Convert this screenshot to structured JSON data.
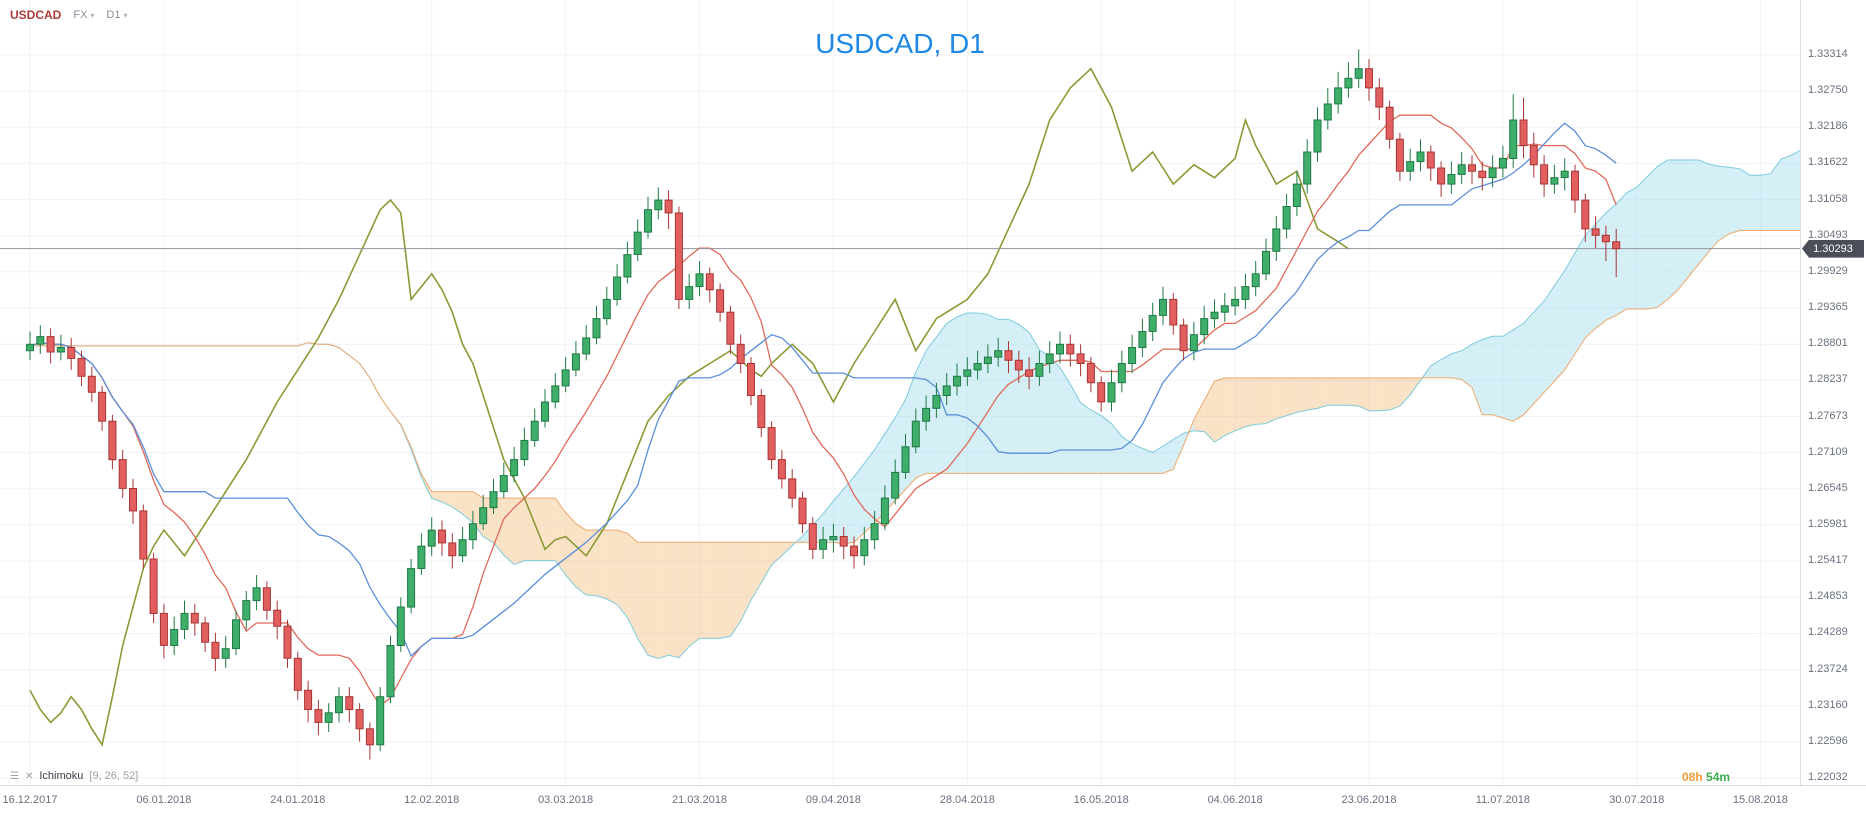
{
  "header": {
    "symbol": "USDCAD",
    "market": "FX",
    "timeframe": "D1"
  },
  "title": "USDCAD, D1",
  "legend": {
    "indicator": "Ichimoku",
    "params": "[9, 26, 52]"
  },
  "countdown": {
    "hours": "08h",
    "minutes": "54m"
  },
  "price_axis": {
    "labels": [
      "1.33314",
      "1.32750",
      "1.32186",
      "1.31622",
      "1.31058",
      "1.30493",
      "1.29929",
      "1.29365",
      "1.28801",
      "1.28237",
      "1.27673",
      "1.27109",
      "1.26545",
      "1.25981",
      "1.25417",
      "1.24853",
      "1.24289",
      "1.23724",
      "1.23160",
      "1.22596",
      "1.22032"
    ],
    "last_price": "1.30293"
  },
  "time_axis": {
    "labels": [
      "16.12.2017",
      "06.01.2018",
      "24.01.2018",
      "12.02.2018",
      "03.03.2018",
      "21.03.2018",
      "09.04.2018",
      "28.04.2018",
      "16.05.2018",
      "04.06.2018",
      "23.06.2018",
      "11.07.2018",
      "30.07.2018",
      "15.08.2018"
    ]
  },
  "colors": {
    "up": "#3fae6a",
    "up_border": "#1f7a45",
    "down": "#e25f5f",
    "down_border": "#a83434",
    "tenkan": "#e06a5a",
    "kijun": "#5b8fd9",
    "chikou": "#8a9a35",
    "senkou_a": "#7ecbdc",
    "senkou_b": "#f0a96b",
    "cloud_bull": "rgba(160,220,236,0.45)",
    "cloud_bear": "rgba(245,190,130,0.45)",
    "grid": "#f0f2f7",
    "price_line": "#8f949d",
    "badge_bg": "#4a4e59",
    "title": "#1e88e5",
    "symbol": "#b03a3a",
    "countdown_hours": "#f29b38",
    "countdown_minutes": "#3cab4e",
    "axis_text": "#6a7080"
  },
  "chart_data": {
    "type": "candlestick",
    "symbol": "USDCAD",
    "interval": "D1",
    "title": "USDCAD, D1",
    "indicator": {
      "name": "Ichimoku",
      "params": [
        9,
        26,
        52
      ]
    },
    "ylim": [
      1.22032,
      1.33314
    ],
    "last_close": 1.30293,
    "x_tick_indices": [
      0,
      13,
      26,
      39,
      52,
      65,
      78,
      91,
      104,
      117,
      130,
      143,
      156,
      168
    ],
    "x_tick_labels": [
      "16.12.2017",
      "06.01.2018",
      "24.01.2018",
      "12.02.2018",
      "03.03.2018",
      "21.03.2018",
      "09.04.2018",
      "28.04.2018",
      "16.05.2018",
      "04.06.2018",
      "23.06.2018",
      "11.07.2018",
      "30.07.2018",
      "15.08.2018"
    ],
    "ohlc": [
      [
        1.287,
        1.29,
        1.2855,
        1.288
      ],
      [
        1.288,
        1.291,
        1.2865,
        1.2892
      ],
      [
        1.2892,
        1.2905,
        1.285,
        1.2868
      ],
      [
        1.2868,
        1.2895,
        1.2855,
        1.2875
      ],
      [
        1.2875,
        1.289,
        1.284,
        1.2858
      ],
      [
        1.2858,
        1.287,
        1.2815,
        1.283
      ],
      [
        1.283,
        1.2845,
        1.279,
        1.2805
      ],
      [
        1.2805,
        1.2815,
        1.2745,
        1.276
      ],
      [
        1.276,
        1.277,
        1.2685,
        1.27
      ],
      [
        1.27,
        1.2715,
        1.264,
        1.2655
      ],
      [
        1.2655,
        1.267,
        1.26,
        1.262
      ],
      [
        1.262,
        1.263,
        1.253,
        1.2545
      ],
      [
        1.2545,
        1.2555,
        1.2445,
        1.246
      ],
      [
        1.246,
        1.2475,
        1.239,
        1.241
      ],
      [
        1.241,
        1.2455,
        1.2395,
        1.2435
      ],
      [
        1.2435,
        1.248,
        1.242,
        1.246
      ],
      [
        1.246,
        1.2475,
        1.2425,
        1.2445
      ],
      [
        1.2445,
        1.2455,
        1.24,
        1.2415
      ],
      [
        1.2415,
        1.243,
        1.237,
        1.239
      ],
      [
        1.239,
        1.2425,
        1.2375,
        1.2405
      ],
      [
        1.2405,
        1.2465,
        1.2395,
        1.245
      ],
      [
        1.245,
        1.2495,
        1.2435,
        1.248
      ],
      [
        1.248,
        1.252,
        1.2465,
        1.25
      ],
      [
        1.25,
        1.251,
        1.245,
        1.2465
      ],
      [
        1.2465,
        1.248,
        1.242,
        1.244
      ],
      [
        1.244,
        1.245,
        1.2375,
        1.239
      ],
      [
        1.239,
        1.24,
        1.2325,
        1.234
      ],
      [
        1.234,
        1.2355,
        1.229,
        1.231
      ],
      [
        1.231,
        1.2325,
        1.227,
        1.229
      ],
      [
        1.229,
        1.232,
        1.2275,
        1.2305
      ],
      [
        1.2305,
        1.2345,
        1.229,
        1.233
      ],
      [
        1.233,
        1.2345,
        1.229,
        1.231
      ],
      [
        1.231,
        1.232,
        1.226,
        1.228
      ],
      [
        1.228,
        1.229,
        1.2232,
        1.2255
      ],
      [
        1.2255,
        1.2345,
        1.2245,
        1.233
      ],
      [
        1.233,
        1.2425,
        1.232,
        1.241
      ],
      [
        1.241,
        1.2485,
        1.24,
        1.247
      ],
      [
        1.247,
        1.2545,
        1.246,
        1.253
      ],
      [
        1.253,
        1.2585,
        1.252,
        1.2565
      ],
      [
        1.2565,
        1.261,
        1.255,
        1.259
      ],
      [
        1.259,
        1.2605,
        1.255,
        1.257
      ],
      [
        1.257,
        1.2585,
        1.253,
        1.255
      ],
      [
        1.255,
        1.2595,
        1.254,
        1.2575
      ],
      [
        1.2575,
        1.262,
        1.256,
        1.26
      ],
      [
        1.26,
        1.2645,
        1.259,
        1.2625
      ],
      [
        1.2625,
        1.267,
        1.2615,
        1.265
      ],
      [
        1.265,
        1.2695,
        1.264,
        1.2675
      ],
      [
        1.2675,
        1.272,
        1.2665,
        1.27
      ],
      [
        1.27,
        1.275,
        1.269,
        1.273
      ],
      [
        1.273,
        1.278,
        1.272,
        1.276
      ],
      [
        1.276,
        1.281,
        1.275,
        1.279
      ],
      [
        1.279,
        1.2835,
        1.278,
        1.2815
      ],
      [
        1.2815,
        1.286,
        1.2805,
        1.284
      ],
      [
        1.284,
        1.2885,
        1.283,
        1.2865
      ],
      [
        1.2865,
        1.291,
        1.2855,
        1.289
      ],
      [
        1.289,
        1.294,
        1.288,
        1.292
      ],
      [
        1.292,
        1.297,
        1.291,
        1.295
      ],
      [
        1.295,
        1.3005,
        1.294,
        1.2985
      ],
      [
        1.2985,
        1.304,
        1.2975,
        1.302
      ],
      [
        1.302,
        1.3075,
        1.301,
        1.3055
      ],
      [
        1.3055,
        1.311,
        1.3045,
        1.309
      ],
      [
        1.309,
        1.3125,
        1.3075,
        1.3105
      ],
      [
        1.3105,
        1.312,
        1.306,
        1.3085
      ],
      [
        1.3085,
        1.3095,
        1.2935,
        1.295
      ],
      [
        1.295,
        1.299,
        1.2935,
        1.297
      ],
      [
        1.297,
        1.301,
        1.2955,
        1.299
      ],
      [
        1.299,
        1.3,
        1.2945,
        1.2965
      ],
      [
        1.2965,
        1.2975,
        1.2915,
        1.293
      ],
      [
        1.293,
        1.294,
        1.2865,
        1.288
      ],
      [
        1.288,
        1.2895,
        1.2835,
        1.285
      ],
      [
        1.285,
        1.286,
        1.2785,
        1.28
      ],
      [
        1.28,
        1.281,
        1.2735,
        1.275
      ],
      [
        1.275,
        1.276,
        1.2685,
        1.27
      ],
      [
        1.27,
        1.2715,
        1.2655,
        1.267
      ],
      [
        1.267,
        1.2685,
        1.2625,
        1.264
      ],
      [
        1.264,
        1.265,
        1.2585,
        1.26
      ],
      [
        1.26,
        1.261,
        1.2545,
        1.256
      ],
      [
        1.256,
        1.2595,
        1.2545,
        1.2575
      ],
      [
        1.2575,
        1.26,
        1.2555,
        1.258
      ],
      [
        1.258,
        1.2595,
        1.2545,
        1.2565
      ],
      [
        1.2565,
        1.258,
        1.253,
        1.255
      ],
      [
        1.255,
        1.2595,
        1.2535,
        1.2575
      ],
      [
        1.2575,
        1.262,
        1.256,
        1.26
      ],
      [
        1.26,
        1.266,
        1.259,
        1.264
      ],
      [
        1.264,
        1.27,
        1.263,
        1.268
      ],
      [
        1.268,
        1.274,
        1.267,
        1.272
      ],
      [
        1.272,
        1.278,
        1.271,
        1.276
      ],
      [
        1.276,
        1.28,
        1.2745,
        1.278
      ],
      [
        1.278,
        1.282,
        1.2765,
        1.28
      ],
      [
        1.28,
        1.2835,
        1.2785,
        1.2815
      ],
      [
        1.2815,
        1.285,
        1.28,
        1.283
      ],
      [
        1.283,
        1.286,
        1.2815,
        1.284
      ],
      [
        1.284,
        1.287,
        1.2825,
        1.285
      ],
      [
        1.285,
        1.288,
        1.2835,
        1.286
      ],
      [
        1.286,
        1.289,
        1.2845,
        1.287
      ],
      [
        1.287,
        1.2885,
        1.2835,
        1.2855
      ],
      [
        1.2855,
        1.287,
        1.282,
        1.284
      ],
      [
        1.284,
        1.286,
        1.281,
        1.283
      ],
      [
        1.283,
        1.287,
        1.2815,
        1.285
      ],
      [
        1.285,
        1.2885,
        1.2835,
        1.2865
      ],
      [
        1.2865,
        1.29,
        1.285,
        1.288
      ],
      [
        1.288,
        1.2895,
        1.2845,
        1.2865
      ],
      [
        1.2865,
        1.288,
        1.283,
        1.285
      ],
      [
        1.285,
        1.286,
        1.2805,
        1.282
      ],
      [
        1.282,
        1.283,
        1.2775,
        1.279
      ],
      [
        1.279,
        1.284,
        1.2775,
        1.282
      ],
      [
        1.282,
        1.287,
        1.2805,
        1.285
      ],
      [
        1.285,
        1.2895,
        1.2835,
        1.2875
      ],
      [
        1.2875,
        1.292,
        1.286,
        1.29
      ],
      [
        1.29,
        1.2945,
        1.2885,
        1.2925
      ],
      [
        1.2925,
        1.297,
        1.291,
        1.295
      ],
      [
        1.295,
        1.296,
        1.2895,
        1.291
      ],
      [
        1.291,
        1.292,
        1.2855,
        1.287
      ],
      [
        1.287,
        1.2915,
        1.2855,
        1.2895
      ],
      [
        1.2895,
        1.294,
        1.288,
        1.292
      ],
      [
        1.292,
        1.295,
        1.2905,
        1.293
      ],
      [
        1.293,
        1.296,
        1.2915,
        1.294
      ],
      [
        1.294,
        1.297,
        1.2925,
        1.295
      ],
      [
        1.295,
        1.299,
        1.2935,
        1.297
      ],
      [
        1.297,
        1.301,
        1.2955,
        1.299
      ],
      [
        1.299,
        1.3045,
        1.298,
        1.3025
      ],
      [
        1.3025,
        1.308,
        1.301,
        1.306
      ],
      [
        1.306,
        1.3115,
        1.3045,
        1.3095
      ],
      [
        1.3095,
        1.315,
        1.308,
        1.313
      ],
      [
        1.313,
        1.32,
        1.3115,
        1.318
      ],
      [
        1.318,
        1.325,
        1.3165,
        1.323
      ],
      [
        1.323,
        1.328,
        1.3215,
        1.3255
      ],
      [
        1.3255,
        1.3305,
        1.324,
        1.328
      ],
      [
        1.328,
        1.332,
        1.3265,
        1.3295
      ],
      [
        1.3295,
        1.334,
        1.328,
        1.331
      ],
      [
        1.331,
        1.3325,
        1.326,
        1.328
      ],
      [
        1.328,
        1.3295,
        1.323,
        1.325
      ],
      [
        1.325,
        1.326,
        1.3185,
        1.32
      ],
      [
        1.32,
        1.321,
        1.3135,
        1.315
      ],
      [
        1.315,
        1.3185,
        1.3135,
        1.3165
      ],
      [
        1.3165,
        1.32,
        1.315,
        1.318
      ],
      [
        1.318,
        1.319,
        1.3135,
        1.3155
      ],
      [
        1.3155,
        1.3165,
        1.311,
        1.313
      ],
      [
        1.313,
        1.3165,
        1.3115,
        1.3145
      ],
      [
        1.3145,
        1.318,
        1.313,
        1.316
      ],
      [
        1.316,
        1.3175,
        1.313,
        1.315
      ],
      [
        1.315,
        1.3165,
        1.312,
        1.314
      ],
      [
        1.314,
        1.3175,
        1.3125,
        1.3155
      ],
      [
        1.3155,
        1.319,
        1.314,
        1.317
      ],
      [
        1.317,
        1.327,
        1.3155,
        1.323
      ],
      [
        1.323,
        1.3265,
        1.317,
        1.319
      ],
      [
        1.319,
        1.321,
        1.314,
        1.316
      ],
      [
        1.316,
        1.3175,
        1.311,
        1.313
      ],
      [
        1.313,
        1.316,
        1.3115,
        1.314
      ],
      [
        1.314,
        1.317,
        1.312,
        1.315
      ],
      [
        1.315,
        1.316,
        1.3085,
        1.3105
      ],
      [
        1.3105,
        1.3115,
        1.304,
        1.306
      ],
      [
        1.306,
        1.308,
        1.303,
        1.305
      ],
      [
        1.305,
        1.3065,
        1.301,
        1.304
      ],
      [
        1.304,
        1.306,
        1.2985,
        1.3029
      ]
    ]
  }
}
